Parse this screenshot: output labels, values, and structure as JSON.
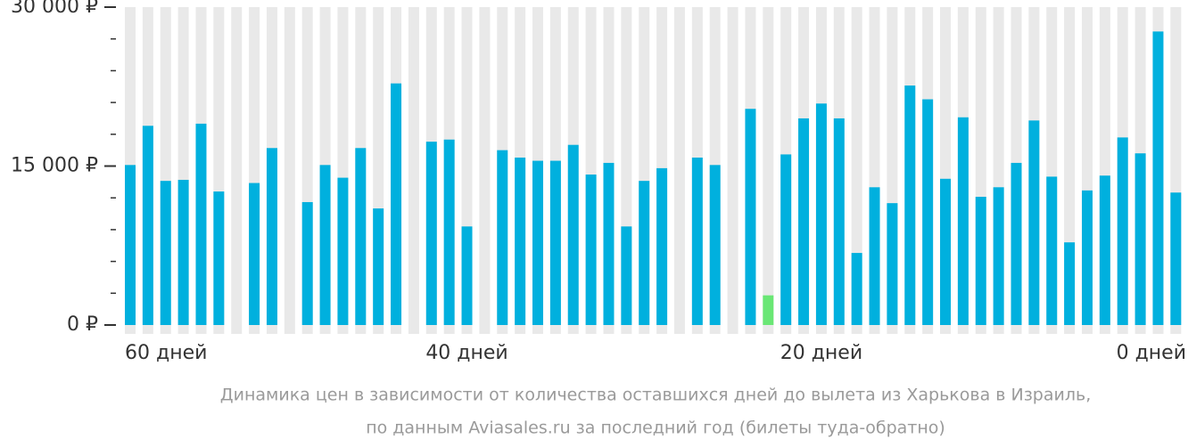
{
  "chart_data": {
    "type": "bar",
    "categories": [
      "60 дней",
      null,
      null,
      null,
      null,
      null,
      null,
      null,
      null,
      null,
      null,
      null,
      null,
      null,
      null,
      null,
      null,
      null,
      null,
      "40 дней",
      null,
      null,
      null,
      null,
      null,
      null,
      null,
      null,
      null,
      null,
      null,
      null,
      null,
      null,
      null,
      null,
      null,
      null,
      null,
      "20 дней",
      null,
      null,
      null,
      null,
      null,
      null,
      null,
      null,
      null,
      null,
      null,
      null,
      null,
      null,
      null,
      null,
      null,
      null,
      null,
      "0 дней"
    ],
    "values": [
      15100,
      18800,
      13600,
      13700,
      19000,
      12600,
      null,
      13400,
      16700,
      null,
      11600,
      15100,
      13900,
      16700,
      11000,
      22800,
      null,
      17300,
      17500,
      9300,
      null,
      16500,
      15800,
      15500,
      15500,
      17000,
      14200,
      15300,
      9300,
      13600,
      14800,
      null,
      15800,
      15100,
      null,
      20400,
      2800,
      16100,
      19500,
      20900,
      19500,
      6800,
      13000,
      11500,
      22600,
      21300,
      13800,
      19600,
      12100,
      13000,
      15300,
      19300,
      14000,
      7800,
      12700,
      14100,
      17700,
      16200,
      27700,
      12500
    ],
    "color": "#00b0de",
    "colors": {
      "36": "#6ae775"
    },
    "ylim": [
      0,
      30000
    ],
    "yticks": [
      {
        "value": 0,
        "label": "0 ₽"
      },
      {
        "value": 15000,
        "label": "15 000 ₽"
      },
      {
        "value": 30000,
        "label": "30 000 ₽"
      }
    ],
    "yminorticks": [
      3000,
      6000,
      9000,
      12000,
      18000,
      21000,
      24000,
      27000
    ],
    "caption": [
      "Динамика цен в зависимости от количества оставшихся дней до вылета из Харькова в Израиль,",
      "по данным Aviasales.ru за последний год (билеты туда-обратно)"
    ]
  }
}
